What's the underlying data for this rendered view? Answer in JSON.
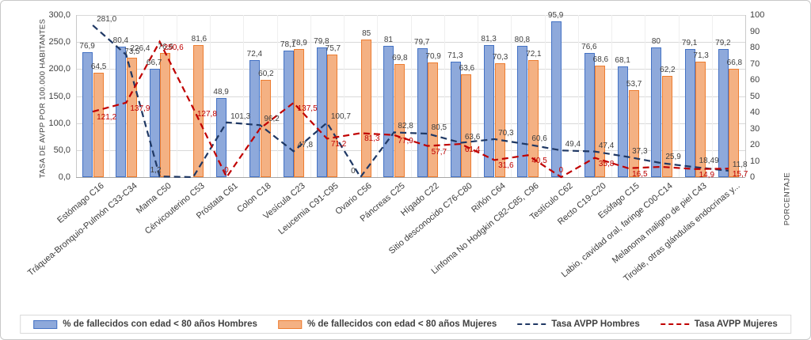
{
  "chart": {
    "left_axis_title": "TASA DE AVPP POR 100.000 HABITANTES",
    "right_axis_title": "PORCENTAJE",
    "left_ticks": [
      "300,0",
      "250,0",
      "200,0",
      "150,0",
      "100,0",
      "50,0",
      "0,0"
    ],
    "right_ticks": [
      "100",
      "90",
      "80",
      "70",
      "60",
      "50",
      "40",
      "30",
      "20",
      "10",
      "0"
    ],
    "colors": {
      "bar_hombres_fill": "#8EA9DB",
      "bar_hombres_border": "#4472C4",
      "bar_mujeres_fill": "#F4B183",
      "bar_mujeres_border": "#ED7D31",
      "line_hombres": "#1F3864",
      "line_mujeres": "#C00000",
      "gridline": "#d9d9d9"
    },
    "legend": [
      {
        "label": "% de fallecidos con edad < 80 años Hombres",
        "type": "bar",
        "color": "#8EA9DB",
        "border": "#4472C4"
      },
      {
        "label": "% de fallecidos con edad < 80 años Mujeres",
        "type": "bar",
        "color": "#F4B183",
        "border": "#ED7D31"
      },
      {
        "label": "Tasa AVPP Hombres",
        "type": "line",
        "color": "#1F3864"
      },
      {
        "label": "Tasa AVPP Mujeres",
        "type": "line",
        "color": "#C00000"
      }
    ]
  },
  "chart_data": {
    "type": "combo-bar-line",
    "categories": [
      "Estómago C16",
      "Tráquea-Bronquio-Pulmón C33-C34",
      "Mama C50",
      "Cérvicouterino C53",
      "Próstata C61",
      "Colon C18",
      "Vesícula C23",
      "Leucemia C91-C95",
      "Ovario C56",
      "Páncreas C25",
      "Hígado C22",
      "Sitio desconocido C76-C80",
      "Riñón C64",
      "Linfoma No Hodgkin C82-C85, C96",
      "Testículo C62",
      "Recto C19-C20",
      "Esófago C15",
      "Labio, cavidad oral, faringe C00-C14",
      "Melanoma maligno de piel C43",
      "Tiroide, otras glándulas endocrinas y..."
    ],
    "left_axis": {
      "title": "TASA DE AVPP POR 100.000 HABITANTES",
      "min": 0,
      "max": 300,
      "step": 50
    },
    "right_axis": {
      "title": "PORCENTAJE",
      "min": 0,
      "max": 100,
      "step": 10
    },
    "grid": true,
    "legend_position": "bottom",
    "series": [
      {
        "name": "% de fallecidos con edad < 80 años Hombres",
        "type": "bar",
        "axis": "right",
        "values": [
          76.9,
          80.4,
          66.7,
          null,
          48.9,
          72.4,
          78.1,
          79.8,
          null,
          81,
          79.7,
          71.3,
          81.3,
          80.8,
          95.9,
          76.6,
          68.1,
          80,
          79.1,
          79.2
        ],
        "labels": [
          "76,9",
          "80,4",
          "66,7",
          "",
          "48,9",
          "72,4",
          "78,1",
          "79,8",
          "",
          "81",
          "79,7",
          "71,3",
          "81,3",
          "80,8",
          "95,9",
          "76,6",
          "68,1",
          "80",
          "79,1",
          "79,2"
        ]
      },
      {
        "name": "% de fallecidos con edad < 80 años Mujeres",
        "type": "bar",
        "axis": "right",
        "values": [
          64.5,
          73.5,
          76.6,
          81.6,
          null,
          60.2,
          78.9,
          75.7,
          85,
          69.8,
          70.9,
          63.6,
          70.3,
          72.1,
          null,
          68.6,
          53.7,
          62.2,
          71.3,
          66.8
        ],
        "labels": [
          "64,5",
          "73,5",
          "76,6",
          "81,6",
          "",
          "60,2",
          "78,9",
          "75,7",
          "85",
          "69,8",
          "70,9",
          "63,6",
          "70,3",
          "72,1",
          "",
          "68,6",
          "53,7",
          "62,2",
          "71,3",
          "66,8"
        ]
      },
      {
        "name": "Tasa AVPP Hombres",
        "type": "line",
        "axis": "left",
        "values": [
          281.0,
          226.4,
          1.2,
          0,
          101.3,
          96.2,
          47.8,
          100.7,
          0,
          82.8,
          80.5,
          63.6,
          70.3,
          60.6,
          49.4,
          47.4,
          37.3,
          25.9,
          18.49,
          11.8
        ],
        "labels": [
          "281,0",
          "226,4",
          "1,2",
          "",
          "101,3",
          "96,2",
          "47,8",
          "100,7",
          "0",
          "82,8",
          "80,5",
          "63,6",
          "70,3",
          "60,6",
          "49,4",
          "47,4",
          "37,3",
          "25,9",
          "18,49",
          "11,8"
        ]
      },
      {
        "name": "Tasa AVPP Mujeres",
        "type": "line",
        "axis": "left",
        "values": [
          121.2,
          137.9,
          250.6,
          127.8,
          0,
          90,
          137.5,
          71.2,
          81.3,
          77.9,
          57.7,
          61.4,
          31.6,
          40.5,
          0,
          35.8,
          16.5,
          19,
          14.9,
          15.7
        ],
        "labels": [
          "121,2",
          "137,9",
          "250,6",
          "127,8",
          "0",
          "",
          "137,5",
          "71,2",
          "81,3",
          "77,9",
          "57,7",
          "61,4",
          "31,6",
          "40,5",
          "0",
          "35,8",
          "16,5",
          "",
          "14,9",
          "15,7"
        ]
      }
    ]
  }
}
